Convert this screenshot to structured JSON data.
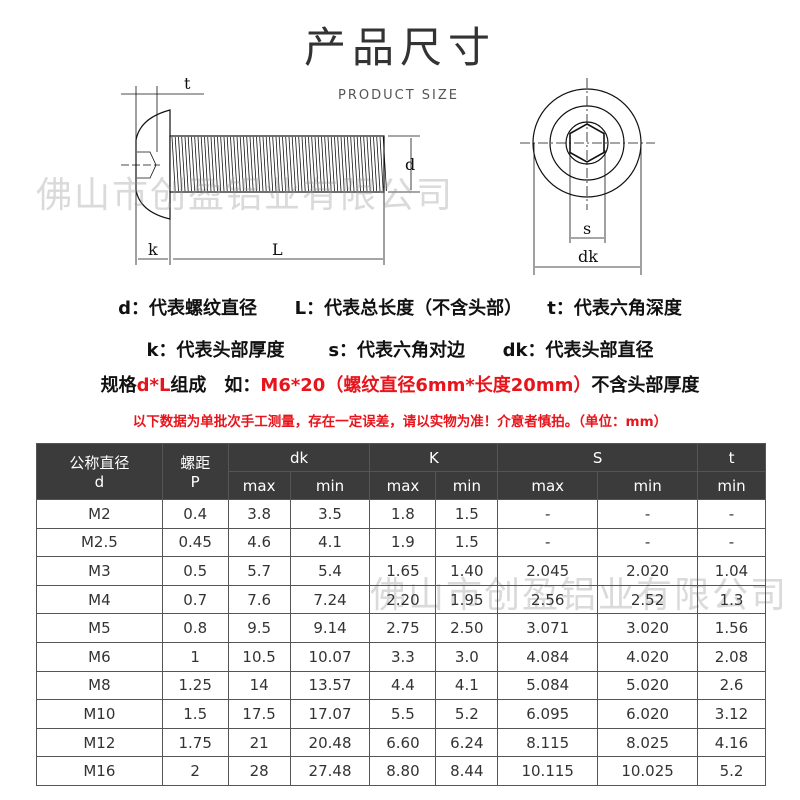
{
  "header": {
    "title": "产品尺寸",
    "subtitle": "PRODUCT SIZE"
  },
  "diagram_labels": {
    "t": "t",
    "d": "d",
    "k": "k",
    "L": "L",
    "s": "s",
    "dk": "dk"
  },
  "watermark": "佛山市创盈铝业有限公司",
  "legend": {
    "line1": [
      "d：代表螺纹直径",
      "L：代表总长度（不含头部）",
      "t：代表六角深度"
    ],
    "line2": [
      "k：代表头部厚度",
      "s：代表六角对边",
      "dk：代表头部直径"
    ],
    "line3": {
      "prefix": "规格",
      "red1": "d*L",
      "mid": "组成　如：",
      "red2": "M6*20（螺纹直径6mm*长度20mm）",
      "suffix": "不含头部厚度"
    },
    "note": "以下数据为单批次手工测量，存在一定误差，请以实物为准！介意者慎拍。（单位：mm）"
  },
  "colors": {
    "accent_red": "#e8141b",
    "header_bg": "#3b3b3b"
  },
  "table": {
    "header": {
      "d_label": "公称直径",
      "d_sym": "d",
      "p_label": "螺距",
      "p_sym": "P",
      "dk": "dk",
      "K": "K",
      "S": "S",
      "t": "t",
      "max": "max",
      "min": "min"
    },
    "rows": [
      [
        "M2",
        "0.4",
        "3.8",
        "3.5",
        "1.8",
        "1.5",
        "-",
        "-",
        "-"
      ],
      [
        "M2.5",
        "0.45",
        "4.6",
        "4.1",
        "1.9",
        "1.5",
        "-",
        "-",
        "-"
      ],
      [
        "M3",
        "0.5",
        "5.7",
        "5.4",
        "1.65",
        "1.40",
        "2.045",
        "2.020",
        "1.04"
      ],
      [
        "M4",
        "0.7",
        "7.6",
        "7.24",
        "2.20",
        "1.95",
        "2.56",
        "2.52",
        "1.3"
      ],
      [
        "M5",
        "0.8",
        "9.5",
        "9.14",
        "2.75",
        "2.50",
        "3.071",
        "3.020",
        "1.56"
      ],
      [
        "M6",
        "1",
        "10.5",
        "10.07",
        "3.3",
        "3.0",
        "4.084",
        "4.020",
        "2.08"
      ],
      [
        "M8",
        "1.25",
        "14",
        "13.57",
        "4.4",
        "4.1",
        "5.084",
        "5.020",
        "2.6"
      ],
      [
        "M10",
        "1.5",
        "17.5",
        "17.07",
        "5.5",
        "5.2",
        "6.095",
        "6.020",
        "3.12"
      ],
      [
        "M12",
        "1.75",
        "21",
        "20.48",
        "6.60",
        "6.24",
        "8.115",
        "8.025",
        "4.16"
      ],
      [
        "M16",
        "2",
        "28",
        "27.48",
        "8.80",
        "8.44",
        "10.115",
        "10.025",
        "5.2"
      ]
    ]
  }
}
